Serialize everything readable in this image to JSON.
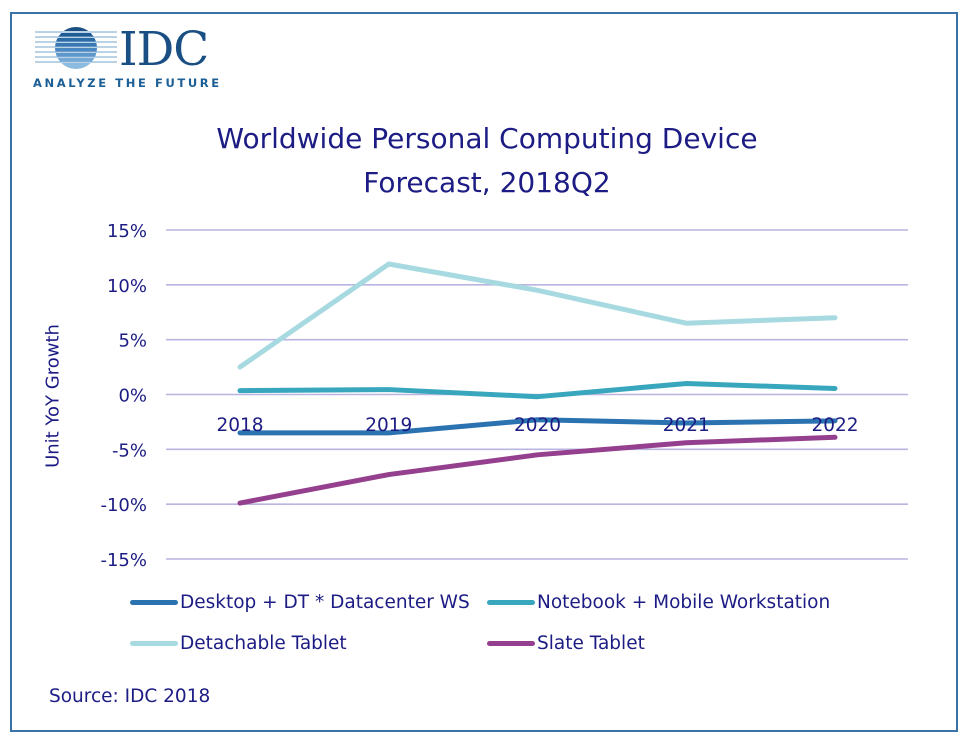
{
  "logo": {
    "brand": "IDC",
    "tagline": "ANALYZE THE FUTURE"
  },
  "source": "Source: IDC 2018",
  "colors": {
    "text": "#1c1c84",
    "gridline": "#b9b4e0",
    "frame": "#3a73a8"
  },
  "chart_data": {
    "type": "line",
    "title": "Worldwide Personal Computing Device Forecast, 2018Q2",
    "title_lines": [
      "Worldwide Personal Computing Device",
      "Forecast, 2018Q2"
    ],
    "xlabel": "",
    "ylabel": "Unit YoY Growth",
    "x": [
      "2018",
      "2019",
      "2020",
      "2021",
      "2022"
    ],
    "ylim": [
      -15,
      15
    ],
    "yticks": [
      15,
      10,
      5,
      0,
      -5,
      -10,
      -15
    ],
    "ytick_labels": [
      "15%",
      "10%",
      "5%",
      "0%",
      "-5%",
      "-10%",
      "-15%"
    ],
    "grid": true,
    "legend_position": "bottom",
    "series": [
      {
        "name": "Desktop + DT * Datacenter WS",
        "color": "#2a72b0",
        "values": [
          -3.5,
          -3.5,
          -2.3,
          -2.6,
          -2.4
        ]
      },
      {
        "name": "Notebook + Mobile Workstation",
        "color": "#38a7bd",
        "values": [
          0.35,
          0.45,
          -0.2,
          1.0,
          0.55
        ]
      },
      {
        "name": "Detachable Tablet",
        "color": "#a7d9e0",
        "values": [
          2.5,
          11.9,
          9.5,
          6.5,
          7.0
        ]
      },
      {
        "name": "Slate Tablet",
        "color": "#95408e",
        "values": [
          -9.9,
          -7.3,
          -5.5,
          -4.4,
          -3.9
        ]
      }
    ]
  }
}
